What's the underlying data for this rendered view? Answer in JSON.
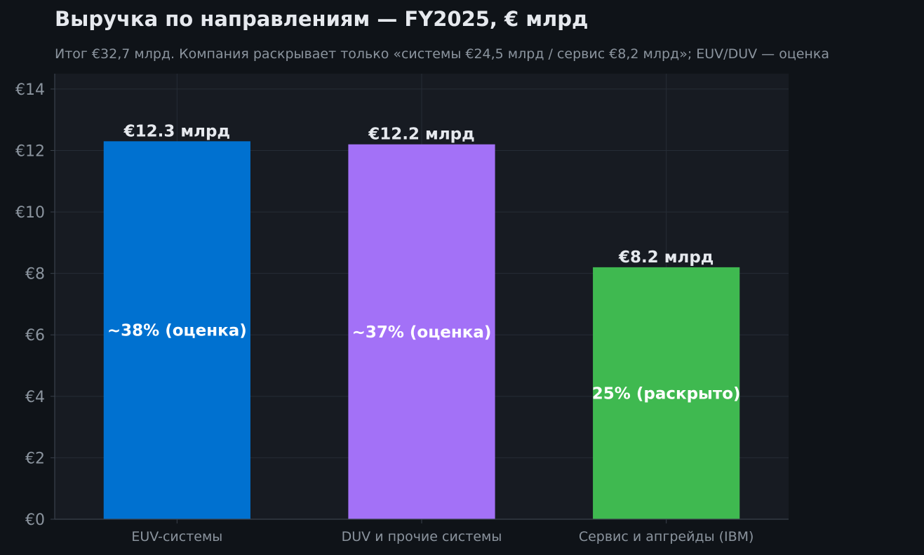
{
  "chart_data": {
    "type": "bar",
    "title": "Выручка по направлениям — FY2025, € млрд",
    "subtitle": "Итог €32,7 млрд. Компания раскрывает только «системы €24,5 млрд / сервис €8,2 млрд»; EUV/DUV — оценка",
    "categories": [
      "EUV-системы",
      "DUV и прочие системы",
      "Сервис и апгрейды (IBM)"
    ],
    "values": [
      12.3,
      12.2,
      8.2
    ],
    "value_labels": [
      "€12.3 млрд",
      "€12.2 млрд",
      "€8.2 млрд"
    ],
    "share_labels": [
      "~38% (оценка)",
      "~37% (оценка)",
      "25% (раскрыто)"
    ],
    "colors": [
      "#0071d0",
      "#a371f7",
      "#3fb950"
    ],
    "ylim": [
      0,
      14.5
    ],
    "yticks": [
      0,
      2,
      4,
      6,
      8,
      10,
      12,
      14
    ],
    "ytick_labels": [
      "€0",
      "€2",
      "€4",
      "€6",
      "€8",
      "€10",
      "€12",
      "€14"
    ],
    "xlabel": "",
    "ylabel": "",
    "grid": true,
    "legend": "none"
  },
  "theme": {
    "page_bg": "#0f1318",
    "plot_bg": "#171b22",
    "grid_color": "#262c36",
    "axis_color": "#3a414c",
    "tick_text": "#8b949e",
    "label_text": "#e6e9ee",
    "inner_label_text": "#ffffff"
  }
}
